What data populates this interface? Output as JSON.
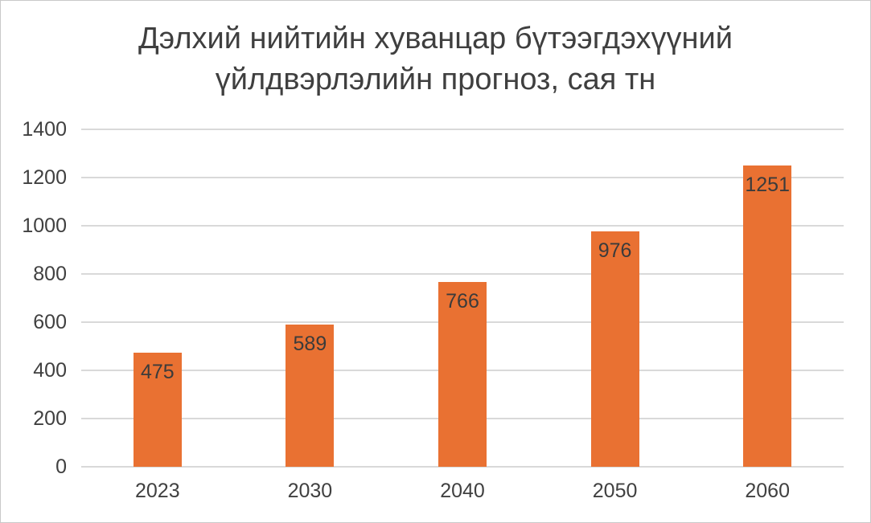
{
  "chart_data": {
    "type": "bar",
    "title": "Дэлхий нийтийн хуванцар бүтээгдэхүүний үйлдвэрлэлийн прогноз, сая тн",
    "categories": [
      "2023",
      "2030",
      "2040",
      "2050",
      "2060"
    ],
    "values": [
      475,
      589,
      766,
      976,
      1251
    ],
    "data_labels": [
      475,
      589,
      766,
      976,
      1251
    ],
    "data_label_position": "inside-end",
    "xlabel": "",
    "ylabel": "",
    "ylim": [
      0,
      1400
    ],
    "yticks": [
      0,
      200,
      400,
      600,
      800,
      1000,
      1200,
      1400
    ],
    "grid": "horizontal",
    "legend": "none",
    "colors": {
      "bar": "#e97132",
      "title_text": "#3f3f3f",
      "axis_text": "#404040",
      "data_label_text": "#3b3b3b",
      "gridline": "#d9d9d9",
      "background": "#ffffff",
      "frame_border": "#c9c9c9"
    }
  }
}
